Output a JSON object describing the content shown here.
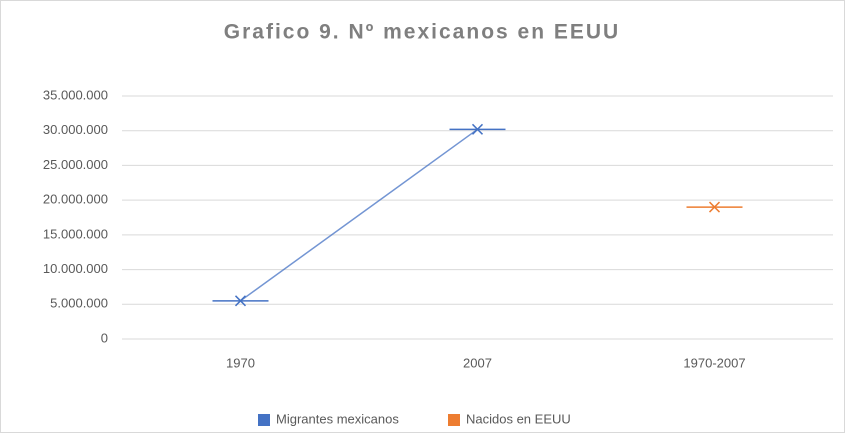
{
  "chart_data": {
    "type": "line",
    "title": "Grafico 9. Nº mexicanos en EEUU",
    "categories": [
      "1970",
      "2007",
      "1970-2007"
    ],
    "series": [
      {
        "name": "Migrantes mexicanos",
        "color": "#4472c4",
        "values": [
          5500000,
          30200000,
          null
        ]
      },
      {
        "name": "Nacidos en EEUU",
        "color": "#ed7d31",
        "values": [
          null,
          null,
          19000000
        ]
      }
    ],
    "ylim": [
      0,
      35000000
    ],
    "yticks": [
      0,
      {
        "value": 5000000,
        "label": "5.000.000"
      },
      {
        "value": 10000000,
        "label": "10.000.000"
      },
      {
        "value": 15000000,
        "label": "15.000.000"
      },
      {
        "value": 20000000,
        "label": "20.000.000"
      },
      {
        "value": 25000000,
        "label": "25.000.000"
      },
      {
        "value": 30000000,
        "label": "30.000.000"
      },
      {
        "value": 35000000,
        "label": "35.000.000"
      }
    ],
    "grid": true,
    "legend": "bottom"
  }
}
